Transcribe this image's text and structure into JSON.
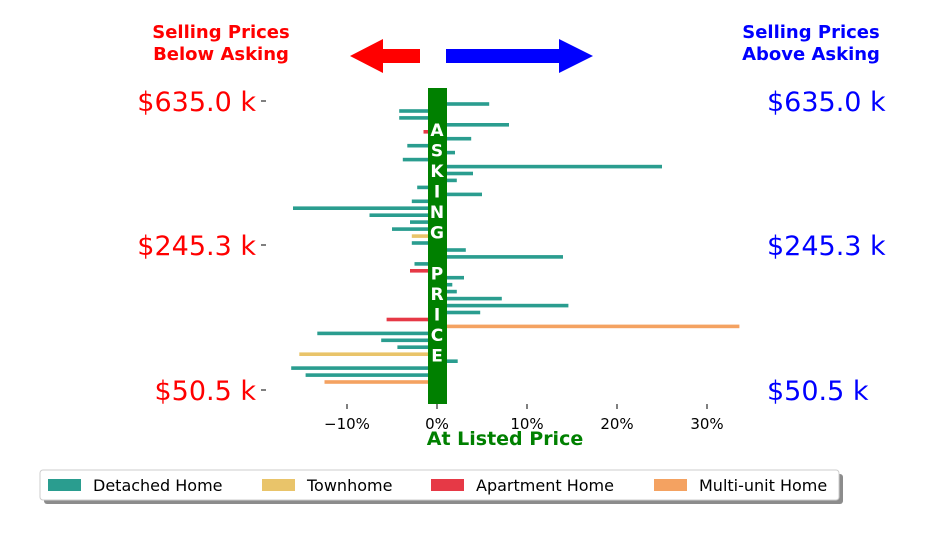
{
  "headers": {
    "left_line1": "Selling Prices",
    "left_line2": "Below Asking",
    "right_line1": "Selling Prices",
    "right_line2": "Above Asking"
  },
  "colors": {
    "below": "#ff0000",
    "above": "#0000ff",
    "asking": "#008000",
    "detached": "#2a9d8f",
    "townhome": "#e9c46a",
    "apartment": "#e63946",
    "multi": "#f4a261"
  },
  "chart_data": {
    "type": "bar",
    "orientation": "horizontal",
    "x_axis": {
      "label": "At Listed Price",
      "ticks": [
        -10,
        0,
        10,
        20,
        30
      ],
      "tick_labels": [
        "−10%",
        "0%",
        "10%",
        "20%",
        "30%"
      ],
      "range": [
        -16.5,
        34
      ]
    },
    "y_axis": {
      "tick_labels": [
        "$635.0 k",
        "$245.3 k",
        "$50.5 k"
      ],
      "right_labels": [
        "$635.0 k",
        "$245.3 k",
        "$50.5 k"
      ]
    },
    "center_band_text": "ASKING PRICE",
    "legend": [
      {
        "key": "detached",
        "label": "Detached Home"
      },
      {
        "key": "townhome",
        "label": "Townhome"
      },
      {
        "key": "apartment",
        "label": "Apartment Home"
      },
      {
        "key": "multi",
        "label": "Multi-unit Home"
      }
    ],
    "bars": [
      {
        "v": 5.8,
        "c": "detached"
      },
      {
        "v": -4.2,
        "c": "detached"
      },
      {
        "v": -4.2,
        "c": "detached"
      },
      {
        "v": 8.0,
        "c": "detached"
      },
      {
        "v": -1.5,
        "c": "apartment"
      },
      {
        "v": 3.8,
        "c": "detached"
      },
      {
        "v": -3.3,
        "c": "detached"
      },
      {
        "v": 2.0,
        "c": "detached"
      },
      {
        "v": -3.8,
        "c": "detached"
      },
      {
        "v": 25.0,
        "c": "detached"
      },
      {
        "v": 4.0,
        "c": "detached"
      },
      {
        "v": 2.2,
        "c": "detached"
      },
      {
        "v": -2.2,
        "c": "detached"
      },
      {
        "v": 5.0,
        "c": "detached"
      },
      {
        "v": -2.8,
        "c": "detached"
      },
      {
        "v": -16.0,
        "c": "detached"
      },
      {
        "v": -7.5,
        "c": "detached"
      },
      {
        "v": -3.0,
        "c": "detached"
      },
      {
        "v": -5.0,
        "c": "detached"
      },
      {
        "v": -2.8,
        "c": "townhome"
      },
      {
        "v": -2.8,
        "c": "detached"
      },
      {
        "v": 3.2,
        "c": "detached"
      },
      {
        "v": 14.0,
        "c": "detached"
      },
      {
        "v": -2.5,
        "c": "detached"
      },
      {
        "v": -3.0,
        "c": "apartment"
      },
      {
        "v": 3.0,
        "c": "detached"
      },
      {
        "v": 1.7,
        "c": "detached"
      },
      {
        "v": 2.2,
        "c": "detached"
      },
      {
        "v": 7.2,
        "c": "detached"
      },
      {
        "v": 14.6,
        "c": "detached"
      },
      {
        "v": 4.8,
        "c": "detached"
      },
      {
        "v": -5.6,
        "c": "apartment"
      },
      {
        "v": 33.6,
        "c": "multi"
      },
      {
        "v": -13.3,
        "c": "detached"
      },
      {
        "v": -6.2,
        "c": "detached"
      },
      {
        "v": -4.4,
        "c": "detached"
      },
      {
        "v": -15.3,
        "c": "townhome"
      },
      {
        "v": 2.3,
        "c": "detached"
      },
      {
        "v": -16.2,
        "c": "detached"
      },
      {
        "v": -14.6,
        "c": "detached"
      },
      {
        "v": -12.5,
        "c": "multi"
      }
    ]
  }
}
